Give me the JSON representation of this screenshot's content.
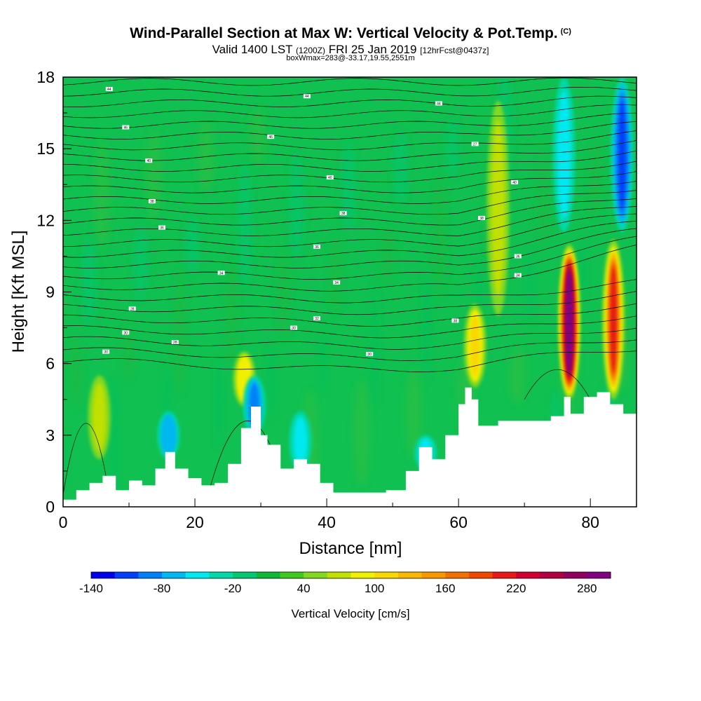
{
  "title": {
    "main": "Wind-Parallel Section at Max W: Vertical Velocity & Pot.Temp.",
    "copyright": "(C)",
    "valid_prefix": "Valid 1400 LST",
    "utc": "(1200Z)",
    "date": "FRI 25 Jan 2019",
    "forecast": "[12hrFcst@0437z]",
    "box_info": "boxWmax=283@-33.17,19.55,2551m"
  },
  "chart_data": {
    "type": "heatmap",
    "xlabel": "Distance [nm]",
    "ylabel": "Height [Kft MSL]",
    "xlim": [
      0,
      87
    ],
    "ylim": [
      0,
      18
    ],
    "xticks": [
      "0",
      "20",
      "40",
      "60",
      "80"
    ],
    "yticks": [
      "0",
      "3",
      "6",
      "9",
      "12",
      "15",
      "18"
    ],
    "colorbar": {
      "title": "Vertical Velocity [cm/s]",
      "range": [
        -140,
        300
      ],
      "step": 20,
      "tick_labels": [
        "-140",
        "-80",
        "-20",
        "40",
        "100",
        "160",
        "220",
        "280"
      ],
      "colors": [
        "#0000ee",
        "#0040f8",
        "#0080f8",
        "#00b8f0",
        "#00e8f0",
        "#00d8a8",
        "#00c870",
        "#10b838",
        "#40c820",
        "#80d820",
        "#c0e000",
        "#f0f000",
        "#f8d800",
        "#f8b800",
        "#f89800",
        "#f07000",
        "#f04800",
        "#e81818",
        "#d00030",
        "#b00040",
        "#900060",
        "#800080"
      ]
    },
    "terrain_kft": [
      [
        0,
        0.3
      ],
      [
        2,
        0.7
      ],
      [
        4,
        1.0
      ],
      [
        6,
        1.3
      ],
      [
        8,
        0.7
      ],
      [
        10,
        1.1
      ],
      [
        12,
        0.9
      ],
      [
        14,
        1.6
      ],
      [
        15.5,
        2.3
      ],
      [
        17,
        1.6
      ],
      [
        19,
        1.2
      ],
      [
        21,
        0.9
      ],
      [
        23,
        1.0
      ],
      [
        25,
        1.8
      ],
      [
        27,
        3.3
      ],
      [
        28.5,
        4.2
      ],
      [
        30,
        3.0
      ],
      [
        31,
        2.6
      ],
      [
        33,
        1.6
      ],
      [
        35,
        2.0
      ],
      [
        37,
        1.8
      ],
      [
        39,
        1.0
      ],
      [
        41,
        0.6
      ],
      [
        45,
        0.6
      ],
      [
        49,
        0.7
      ],
      [
        52,
        1.5
      ],
      [
        54,
        2.5
      ],
      [
        56,
        2.0
      ],
      [
        58,
        3.0
      ],
      [
        60,
        4.3
      ],
      [
        61,
        5.0
      ],
      [
        62,
        4.5
      ],
      [
        63,
        3.4
      ],
      [
        66,
        3.6
      ],
      [
        70,
        3.6
      ],
      [
        74,
        3.8
      ],
      [
        76,
        4.6
      ],
      [
        77,
        3.9
      ],
      [
        79,
        4.6
      ],
      [
        81,
        4.8
      ],
      [
        83,
        4.3
      ],
      [
        85,
        3.9
      ],
      [
        87,
        3.9
      ]
    ],
    "updrafts": [
      {
        "x": 76.8,
        "y_bottom": 4.5,
        "y_top": 11.0,
        "peak_cm_s": 283
      },
      {
        "x": 83.5,
        "y_bottom": 4.5,
        "y_top": 11.2,
        "peak_cm_s": 200
      },
      {
        "x": 62.5,
        "y_bottom": 5.0,
        "y_top": 8.5,
        "peak_cm_s": 100
      },
      {
        "x": 27.5,
        "y_bottom": 4.2,
        "y_top": 6.5,
        "peak_cm_s": 90
      },
      {
        "x": 5.5,
        "y_bottom": 2.0,
        "y_top": 5.5,
        "peak_cm_s": 70
      },
      {
        "x": 66.0,
        "y_bottom": 8.0,
        "y_top": 17.0,
        "peak_cm_s": 70
      }
    ],
    "downdrafts": [
      {
        "x": 84.8,
        "y_bottom": 11.5,
        "y_top": 18.0,
        "min_cm_s": -120
      },
      {
        "x": 76.0,
        "y_bottom": 11.5,
        "y_top": 18.0,
        "min_cm_s": -60
      },
      {
        "x": 29.0,
        "y_bottom": 3.0,
        "y_top": 5.5,
        "min_cm_s": -100
      },
      {
        "x": 16.0,
        "y_bottom": 2.0,
        "y_top": 4.0,
        "min_cm_s": -80
      },
      {
        "x": 36.0,
        "y_bottom": 1.5,
        "y_top": 4.0,
        "min_cm_s": -60
      },
      {
        "x": 55.0,
        "y_bottom": 1.5,
        "y_top": 3.0,
        "min_cm_s": -60
      }
    ],
    "theta_contour_labels": [
      {
        "text": "44",
        "x": 7,
        "y": 17.5
      },
      {
        "text": "44",
        "x": 37,
        "y": 17.2
      },
      {
        "text": "44",
        "x": 57,
        "y": 16.9
      },
      {
        "text": "46",
        "x": 9.5,
        "y": 15.9
      },
      {
        "text": "46",
        "x": 31.5,
        "y": 15.5
      },
      {
        "text": "27",
        "x": 62.5,
        "y": 15.2
      },
      {
        "text": "40",
        "x": 13,
        "y": 14.5
      },
      {
        "text": "40",
        "x": 40.5,
        "y": 13.8
      },
      {
        "text": "40",
        "x": 68.5,
        "y": 13.6
      },
      {
        "text": "38",
        "x": 13.5,
        "y": 12.8
      },
      {
        "text": "38",
        "x": 42.5,
        "y": 12.3
      },
      {
        "text": "38",
        "x": 63.5,
        "y": 12.1
      },
      {
        "text": "36",
        "x": 15,
        "y": 11.7
      },
      {
        "text": "36",
        "x": 38.5,
        "y": 10.9
      },
      {
        "text": "36",
        "x": 69,
        "y": 10.5
      },
      {
        "text": "34",
        "x": 24,
        "y": 9.8
      },
      {
        "text": "34",
        "x": 41.5,
        "y": 9.4
      },
      {
        "text": "34",
        "x": 69,
        "y": 9.7
      },
      {
        "text": "28",
        "x": 10.5,
        "y": 8.3
      },
      {
        "text": "32",
        "x": 38.5,
        "y": 7.9
      },
      {
        "text": "38",
        "x": 59.5,
        "y": 7.8
      },
      {
        "text": "30",
        "x": 9.5,
        "y": 7.3
      },
      {
        "text": "30",
        "x": 35,
        "y": 7.5
      },
      {
        "text": "28",
        "x": 17,
        "y": 6.9
      },
      {
        "text": "30",
        "x": 6.5,
        "y": 6.5
      },
      {
        "text": "30",
        "x": 46.5,
        "y": 6.4
      }
    ]
  }
}
